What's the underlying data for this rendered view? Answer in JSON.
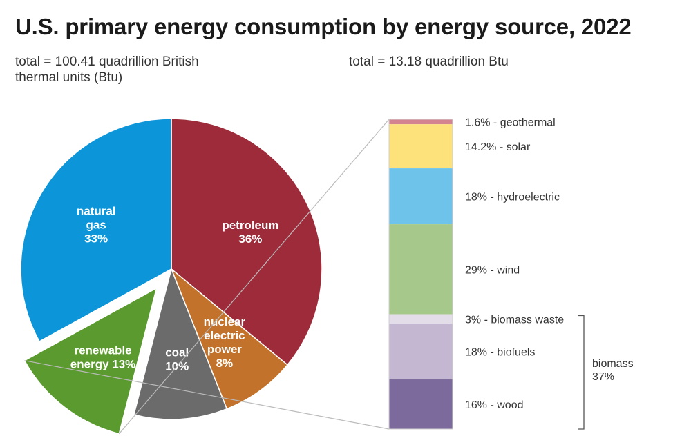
{
  "title": "U.S. primary energy consumption by energy source, 2022",
  "subtitle_left": "total = 100.41 quadrillion British thermal units (Btu)",
  "subtitle_right": "total = 13.18 quadrillion Btu",
  "chart_data": [
    {
      "type": "pie",
      "slices": [
        {
          "name": "petroleum",
          "label_lines": [
            "petroleum",
            "36%"
          ],
          "value": 36,
          "color": "#9e2b3a"
        },
        {
          "name": "nuclear electric power",
          "label_lines": [
            "nuclear",
            "electric",
            "power",
            "8%"
          ],
          "value": 8,
          "color": "#c2722a"
        },
        {
          "name": "coal",
          "label_lines": [
            "coal",
            "10%"
          ],
          "value": 10,
          "color": "#6b6b6b"
        },
        {
          "name": "renewable energy",
          "label_lines": [
            "renewable",
            "energy 13%"
          ],
          "value": 13,
          "color": "#5a9a2e",
          "exploded": true
        },
        {
          "name": "natural gas",
          "label_lines": [
            "natural",
            "gas",
            "33%"
          ],
          "value": 33,
          "color": "#0c95d9"
        }
      ]
    },
    {
      "type": "bar",
      "stacked": true,
      "segments": [
        {
          "name": "geothermal",
          "label": "1.6% - geothermal",
          "value": 1.6,
          "color": "#d4848e"
        },
        {
          "name": "solar",
          "label": "14.2% - solar",
          "value": 14.2,
          "color": "#fde17a"
        },
        {
          "name": "hydroelectric",
          "label": "18% - hydroelectric",
          "value": 18,
          "color": "#6ec3ea"
        },
        {
          "name": "wind",
          "label": "29% - wind",
          "value": 29,
          "color": "#a6c98b"
        },
        {
          "name": "biomass waste",
          "label": "3% - biomass waste",
          "value": 3,
          "color": "#e2dde9"
        },
        {
          "name": "biofuels",
          "label": "18% - biofuels",
          "value": 18,
          "color": "#c3b7d1"
        },
        {
          "name": "wood",
          "label": "16% - wood",
          "value": 16,
          "color": "#7d6a9c"
        }
      ],
      "group": {
        "label_lines": [
          "biomass",
          "37%"
        ],
        "from": "biomass waste",
        "to": "wood"
      }
    }
  ]
}
